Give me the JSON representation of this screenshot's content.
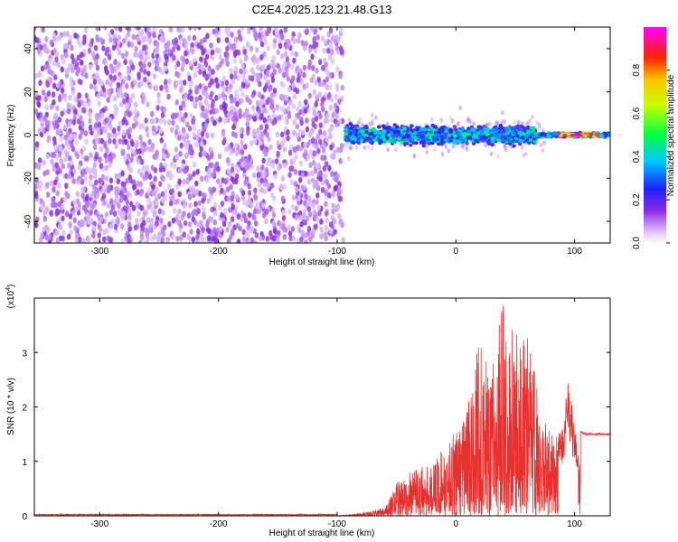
{
  "title": "C2E4.2025.123.21.48.G13",
  "chart_data": [
    {
      "type": "heatmap",
      "xlabel": "Height of straight line (km)",
      "ylabel": "Frequency (Hz)",
      "xlim": [
        -355,
        130
      ],
      "ylim": [
        -50,
        50
      ],
      "xticks": [
        -300,
        -200,
        -100,
        0,
        100
      ],
      "yticks": [
        -40,
        -20,
        0,
        20,
        40
      ],
      "description_regions": [
        {
          "x_range": [
            -355,
            -95
          ],
          "freq_range": [
            -50,
            50
          ],
          "amplitude": "low (0.05-0.2), diffuse noise"
        },
        {
          "x_range": [
            -95,
            65
          ],
          "freq_range": [
            -10,
            12
          ],
          "amplitude": "0.2-0.5 band centred near 0 Hz"
        },
        {
          "x_range": [
            65,
            130
          ],
          "freq_range": [
            -3,
            3
          ],
          "amplitude": "0.4-1.0 narrow line at ~0 Hz"
        }
      ],
      "colorbar": {
        "label": "Normalized spectral amplitude",
        "range": [
          0,
          1
        ],
        "ticks": [
          0.0,
          0.2,
          0.4,
          0.6,
          0.8
        ],
        "tick_labels": [
          "0.0",
          "0.2",
          "0.4",
          "0.6",
          "0.8"
        ],
        "colormap": "rainbow (white-violet-blue-cyan-green-yellow-red-magenta)"
      },
      "grid": false
    },
    {
      "type": "line",
      "xlabel": "Height of straight line (km)",
      "ylabel": "SNR (10 * v/v)",
      "y_multiplier": "(x10",
      "y_multiplier_exp": "4",
      "y_multiplier_close": ")",
      "xlim": [
        -355,
        130
      ],
      "ylim": [
        0,
        4
      ],
      "xticks": [
        -300,
        -200,
        -100,
        0,
        100
      ],
      "yticks": [
        0,
        1,
        2,
        3
      ],
      "color": "#e8302e",
      "series": [
        {
          "x": [
            -355,
            -100,
            -80,
            -60,
            -50,
            -40,
            -30,
            -20,
            -10,
            0,
            10,
            20,
            30,
            40,
            50,
            60,
            70,
            80,
            85,
            90,
            95,
            100,
            105,
            110,
            120,
            130
          ],
          "y_envelope": [
            0.0,
            0.0,
            0.05,
            0.15,
            0.6,
            0.8,
            0.9,
            1.0,
            1.3,
            1.6,
            2.0,
            3.3,
            2.6,
            4.0,
            3.3,
            3.6,
            2.2,
            1.6,
            1.5,
            1.6,
            2.7,
            1.5,
            1.55,
            1.5,
            1.5,
            1.5
          ]
        }
      ],
      "grid": false
    }
  ]
}
